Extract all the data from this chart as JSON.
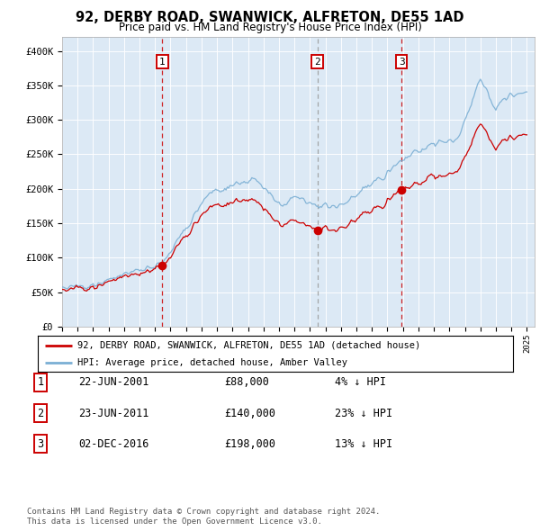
{
  "title": "92, DERBY ROAD, SWANWICK, ALFRETON, DE55 1AD",
  "subtitle": "Price paid vs. HM Land Registry's House Price Index (HPI)",
  "background_color": "#dce9f5",
  "plot_bg_color": "#dce9f5",
  "ylim": [
    0,
    420000
  ],
  "yticks": [
    0,
    50000,
    100000,
    150000,
    200000,
    250000,
    300000,
    350000,
    400000
  ],
  "ytick_labels": [
    "£0",
    "£50K",
    "£100K",
    "£150K",
    "£200K",
    "£250K",
    "£300K",
    "£350K",
    "£400K"
  ],
  "sales": [
    {
      "date_num": 2001.47,
      "price": 88000,
      "label": "1",
      "line_color": "#cc0000"
    },
    {
      "date_num": 2011.47,
      "price": 140000,
      "label": "2",
      "line_color": "#999999"
    },
    {
      "date_num": 2016.92,
      "price": 198000,
      "label": "3",
      "line_color": "#cc0000"
    }
  ],
  "legend_entries": [
    {
      "label": "92, DERBY ROAD, SWANWICK, ALFRETON, DE55 1AD (detached house)",
      "color": "#cc0000"
    },
    {
      "label": "HPI: Average price, detached house, Amber Valley",
      "color": "#7bafd4"
    }
  ],
  "table_rows": [
    {
      "num": "1",
      "date": "22-JUN-2001",
      "price": "£88,000",
      "hpi": "4% ↓ HPI"
    },
    {
      "num": "2",
      "date": "23-JUN-2011",
      "price": "£140,000",
      "hpi": "23% ↓ HPI"
    },
    {
      "num": "3",
      "date": "02-DEC-2016",
      "price": "£198,000",
      "hpi": "13% ↓ HPI"
    }
  ],
  "footer1": "Contains HM Land Registry data © Crown copyright and database right 2024.",
  "footer2": "This data is licensed under the Open Government Licence v3.0."
}
